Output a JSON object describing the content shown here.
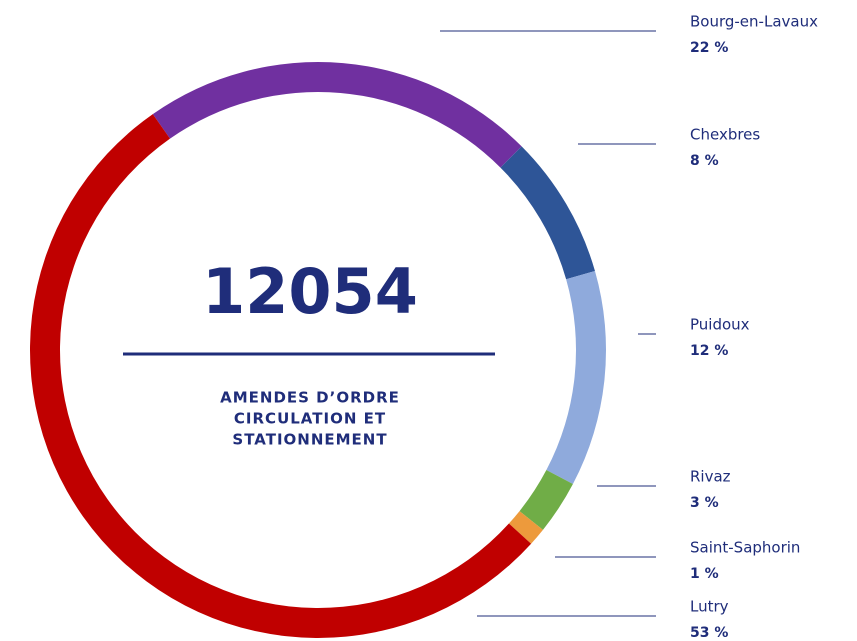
{
  "chart_data": {
    "type": "donut",
    "title": "12054",
    "subtitle": [
      "AMENDES D’ORDRE",
      "CIRCULATION ET",
      "STATIONNEMENT"
    ],
    "categories": [
      "Bourg-en-Lavaux",
      "Chexbres",
      "Puidoux",
      "Rivaz",
      "Saint-Saphorin",
      "Lutry"
    ],
    "values": [
      22,
      8,
      12,
      3,
      1,
      53
    ],
    "value_labels": [
      "22 %",
      "8 %",
      "12 %",
      "3 %",
      "1 %",
      "53 %"
    ],
    "colors": [
      "#7030a0",
      "#2e5597",
      "#8faadc",
      "#70ad47",
      "#ed9a3c",
      "#c00000"
    ]
  }
}
